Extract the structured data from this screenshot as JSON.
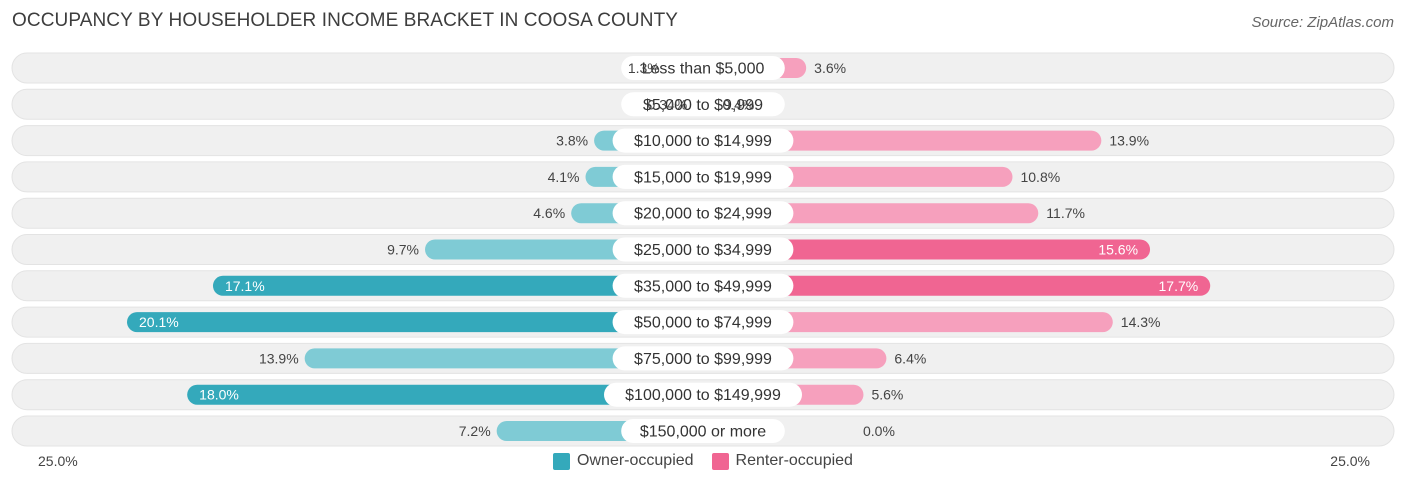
{
  "header": {
    "title": "OCCUPANCY BY HOUSEHOLDER INCOME BRACKET IN COOSA COUNTY",
    "source": "Source: ZipAtlas.com"
  },
  "colors": {
    "owner_strong": "#34a9bb",
    "owner_light": "#7fcbd5",
    "renter_strong": "#f06592",
    "renter_light": "#f6a0bd",
    "row_bg": "#f0f0f0"
  },
  "chart_data": {
    "type": "bar",
    "orientation": "horizontal-diverging",
    "title": "OCCUPANCY BY HOUSEHOLDER INCOME BRACKET IN COOSA COUNTY",
    "categories": [
      "Less than $5,000",
      "$5,000 to $9,999",
      "$10,000 to $14,999",
      "$15,000 to $19,999",
      "$20,000 to $24,999",
      "$25,000 to $34,999",
      "$35,000 to $49,999",
      "$50,000 to $74,999",
      "$75,000 to $99,999",
      "$100,000 to $149,999",
      "$150,000 or more"
    ],
    "series": [
      {
        "name": "Owner-occupied",
        "values": [
          1.3,
          0.34,
          3.8,
          4.1,
          4.6,
          9.7,
          17.1,
          20.1,
          13.9,
          18.0,
          7.2
        ],
        "labels": [
          "1.3%",
          "0.34%",
          "3.8%",
          "4.1%",
          "4.6%",
          "9.7%",
          "17.1%",
          "20.1%",
          "13.9%",
          "18.0%",
          "7.2%"
        ]
      },
      {
        "name": "Renter-occupied",
        "values": [
          3.6,
          0.4,
          13.9,
          10.8,
          11.7,
          15.6,
          17.7,
          14.3,
          6.4,
          5.6,
          0.0
        ],
        "labels": [
          "3.6%",
          "0.4%",
          "13.9%",
          "10.8%",
          "11.7%",
          "15.6%",
          "17.7%",
          "14.3%",
          "6.4%",
          "5.6%",
          "0.0%"
        ]
      }
    ],
    "axis": {
      "min_label": "25.0%",
      "max_label": "25.0%",
      "max": 25.0
    },
    "legend": [
      "Owner-occupied",
      "Renter-occupied"
    ]
  }
}
